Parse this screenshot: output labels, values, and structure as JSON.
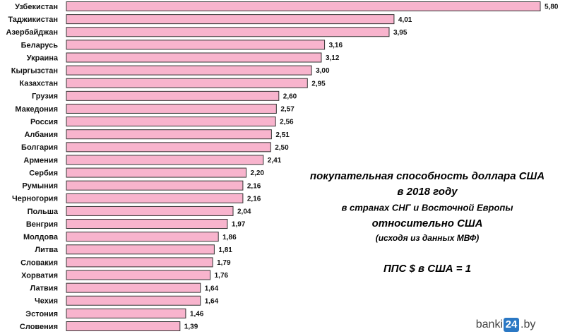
{
  "chart_data": {
    "type": "hbar",
    "categories": [
      "Узбекистан",
      "Таджикистан",
      "Азербайджан",
      "Беларусь",
      "Украина",
      "Кыргызстан",
      "Казахстан",
      "Грузия",
      "Македония",
      "Россия",
      "Албания",
      "Болгария",
      "Армения",
      "Сербия",
      "Румыния",
      "Черногория",
      "Польша",
      "Венгрия",
      "Молдова",
      "Литва",
      "Словакия",
      "Хорватия",
      "Латвия",
      "Чехия",
      "Эстония",
      "Словения"
    ],
    "values": [
      5.8,
      4.01,
      3.95,
      3.16,
      3.12,
      3.0,
      2.95,
      2.6,
      2.57,
      2.56,
      2.51,
      2.5,
      2.41,
      2.2,
      2.16,
      2.16,
      2.04,
      1.97,
      1.86,
      1.81,
      1.79,
      1.76,
      1.64,
      1.64,
      1.46,
      1.39
    ],
    "value_labels": [
      "5,80",
      "4,01",
      "3,95",
      "3,16",
      "3,12",
      "3,00",
      "2,95",
      "2,60",
      "2,57",
      "2,56",
      "2,51",
      "2,50",
      "2,41",
      "2,20",
      "2,16",
      "2,16",
      "2,04",
      "1,97",
      "1,86",
      "1,81",
      "1,79",
      "1,76",
      "1,64",
      "1,64",
      "1,46",
      "1,39"
    ],
    "color": "#f8b4cd",
    "title_lines": [
      "покупательная способность доллара США",
      "в 2018 году",
      "в странах СНГ и Восточной Европы",
      "относительно США",
      "(исходя из данных МВФ)"
    ],
    "note": "ППС $ в США = 1",
    "watermark": {
      "prefix": "banki",
      "badge": "24",
      "suffix": ".by"
    }
  }
}
